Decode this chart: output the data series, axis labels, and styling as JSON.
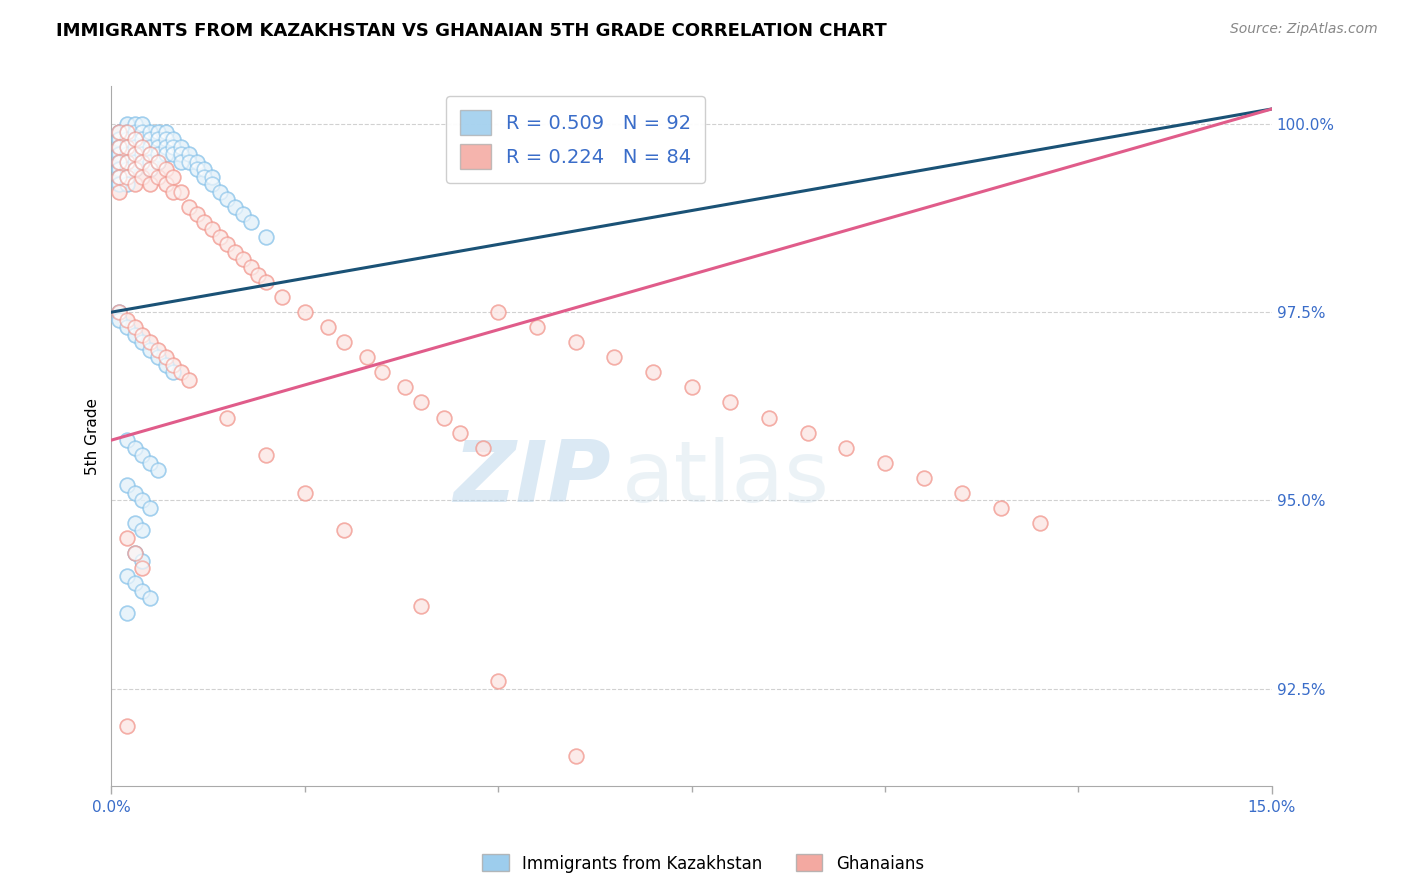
{
  "title": "IMMIGRANTS FROM KAZAKHSTAN VS GHANAIAN 5TH GRADE CORRELATION CHART",
  "source_text": "Source: ZipAtlas.com",
  "ylabel": "5th Grade",
  "legend_label_1": "Immigrants from Kazakhstan",
  "legend_label_2": "Ghanaians",
  "R1": 0.509,
  "N1": 92,
  "R2": 0.224,
  "N2": 84,
  "color_blue": "#85c1e9",
  "color_pink": "#f1948a",
  "line_color_blue": "#1a5276",
  "line_color_pink": "#e05c8a",
  "xmin": 0.0,
  "xmax": 0.15,
  "ymin": 0.912,
  "ymax": 1.005,
  "yticks": [
    0.925,
    0.95,
    0.975,
    1.0
  ],
  "ytick_labels": [
    "92.5%",
    "95.0%",
    "97.5%",
    "100.0%"
  ],
  "watermark_zip": "ZIP",
  "watermark_atlas": "atlas",
  "title_fontsize": 13,
  "label_color": "#3a6dc9",
  "tick_color": "#3a6dc9",
  "blue_line_x0": 0.0,
  "blue_line_y0": 0.975,
  "blue_line_x1": 0.15,
  "blue_line_y1": 1.002,
  "pink_line_x0": 0.0,
  "pink_line_y0": 0.958,
  "pink_line_x1": 0.15,
  "pink_line_y1": 1.002,
  "blue_x": [
    0.001,
    0.001,
    0.001,
    0.001,
    0.001,
    0.001,
    0.001,
    0.001,
    0.002,
    0.002,
    0.002,
    0.002,
    0.002,
    0.002,
    0.002,
    0.002,
    0.002,
    0.003,
    0.003,
    0.003,
    0.003,
    0.003,
    0.003,
    0.003,
    0.004,
    0.004,
    0.004,
    0.004,
    0.004,
    0.004,
    0.005,
    0.005,
    0.005,
    0.005,
    0.005,
    0.005,
    0.006,
    0.006,
    0.006,
    0.006,
    0.006,
    0.007,
    0.007,
    0.007,
    0.007,
    0.008,
    0.008,
    0.008,
    0.009,
    0.009,
    0.009,
    0.01,
    0.01,
    0.011,
    0.011,
    0.012,
    0.012,
    0.013,
    0.013,
    0.014,
    0.015,
    0.016,
    0.017,
    0.018,
    0.02,
    0.001,
    0.001,
    0.002,
    0.003,
    0.004,
    0.005,
    0.006,
    0.007,
    0.008,
    0.002,
    0.003,
    0.004,
    0.005,
    0.006,
    0.002,
    0.003,
    0.004,
    0.005,
    0.003,
    0.004,
    0.003,
    0.004,
    0.002,
    0.003,
    0.004,
    0.005,
    0.002
  ],
  "blue_y": [
    0.999,
    0.998,
    0.997,
    0.996,
    0.995,
    0.994,
    0.993,
    0.992,
    1.0,
    0.999,
    0.998,
    0.997,
    0.996,
    0.995,
    0.994,
    0.993,
    0.992,
    1.0,
    0.999,
    0.998,
    0.997,
    0.996,
    0.995,
    0.994,
    1.0,
    0.999,
    0.998,
    0.997,
    0.996,
    0.995,
    0.999,
    0.998,
    0.997,
    0.996,
    0.995,
    0.994,
    0.999,
    0.998,
    0.997,
    0.996,
    0.995,
    0.999,
    0.998,
    0.997,
    0.996,
    0.998,
    0.997,
    0.996,
    0.997,
    0.996,
    0.995,
    0.996,
    0.995,
    0.995,
    0.994,
    0.994,
    0.993,
    0.993,
    0.992,
    0.991,
    0.99,
    0.989,
    0.988,
    0.987,
    0.985,
    0.975,
    0.974,
    0.973,
    0.972,
    0.971,
    0.97,
    0.969,
    0.968,
    0.967,
    0.958,
    0.957,
    0.956,
    0.955,
    0.954,
    0.952,
    0.951,
    0.95,
    0.949,
    0.947,
    0.946,
    0.943,
    0.942,
    0.94,
    0.939,
    0.938,
    0.937,
    0.935
  ],
  "pink_x": [
    0.001,
    0.001,
    0.001,
    0.001,
    0.001,
    0.002,
    0.002,
    0.002,
    0.002,
    0.003,
    0.003,
    0.003,
    0.003,
    0.004,
    0.004,
    0.004,
    0.005,
    0.005,
    0.005,
    0.006,
    0.006,
    0.007,
    0.007,
    0.008,
    0.008,
    0.009,
    0.01,
    0.011,
    0.012,
    0.013,
    0.014,
    0.015,
    0.016,
    0.017,
    0.018,
    0.019,
    0.02,
    0.022,
    0.025,
    0.028,
    0.03,
    0.033,
    0.035,
    0.038,
    0.04,
    0.043,
    0.045,
    0.048,
    0.05,
    0.055,
    0.06,
    0.065,
    0.07,
    0.075,
    0.08,
    0.085,
    0.09,
    0.095,
    0.1,
    0.105,
    0.11,
    0.115,
    0.12,
    0.001,
    0.002,
    0.003,
    0.004,
    0.005,
    0.006,
    0.007,
    0.008,
    0.009,
    0.01,
    0.015,
    0.02,
    0.025,
    0.03,
    0.04,
    0.05,
    0.06,
    0.002,
    0.003,
    0.004,
    0.002
  ],
  "pink_y": [
    0.999,
    0.997,
    0.995,
    0.993,
    0.991,
    0.999,
    0.997,
    0.995,
    0.993,
    0.998,
    0.996,
    0.994,
    0.992,
    0.997,
    0.995,
    0.993,
    0.996,
    0.994,
    0.992,
    0.995,
    0.993,
    0.994,
    0.992,
    0.993,
    0.991,
    0.991,
    0.989,
    0.988,
    0.987,
    0.986,
    0.985,
    0.984,
    0.983,
    0.982,
    0.981,
    0.98,
    0.979,
    0.977,
    0.975,
    0.973,
    0.971,
    0.969,
    0.967,
    0.965,
    0.963,
    0.961,
    0.959,
    0.957,
    0.975,
    0.973,
    0.971,
    0.969,
    0.967,
    0.965,
    0.963,
    0.961,
    0.959,
    0.957,
    0.955,
    0.953,
    0.951,
    0.949,
    0.947,
    0.975,
    0.974,
    0.973,
    0.972,
    0.971,
    0.97,
    0.969,
    0.968,
    0.967,
    0.966,
    0.961,
    0.956,
    0.951,
    0.946,
    0.936,
    0.926,
    0.916,
    0.945,
    0.943,
    0.941,
    0.92
  ]
}
